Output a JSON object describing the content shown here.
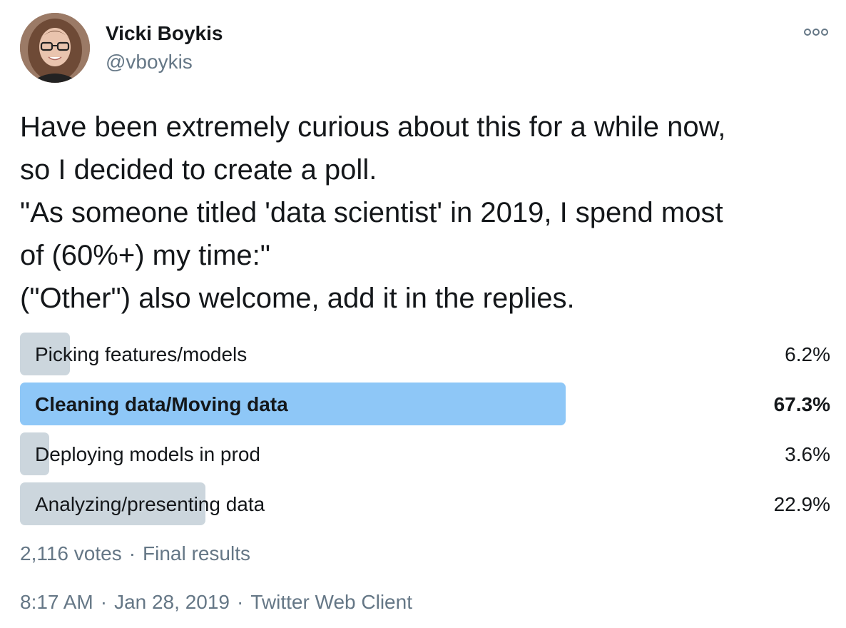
{
  "author": {
    "display_name": "Vicki Boykis",
    "handle": "@vboykis"
  },
  "menu": {
    "icon": "more-horizontal-icon"
  },
  "tweet": {
    "lines": [
      "Have been extremely curious about this for a while now,",
      "so I decided to create a poll.",
      "\"As someone titled 'data scientist' in 2019, I spend most",
      "of (60%+)  my time:\"",
      "(\"Other\") also welcome, add it in the replies."
    ]
  },
  "poll": {
    "options": [
      {
        "label": "Picking features/models",
        "percent_text": "6.2%",
        "percent": 6.2,
        "winner": false
      },
      {
        "label": "Cleaning data/Moving data",
        "percent_text": "67.3%",
        "percent": 67.3,
        "winner": true
      },
      {
        "label": "Deploying models in prod",
        "percent_text": "3.6%",
        "percent": 3.6,
        "winner": false
      },
      {
        "label": "Analyzing/presenting data",
        "percent_text": "22.9%",
        "percent": 22.9,
        "winner": false
      }
    ],
    "votes": "2,116 votes",
    "status": "Final results",
    "bar_color": "#ccd6dd",
    "winner_bar_color": "#8ec7f7"
  },
  "meta": {
    "time": "8:17 AM",
    "date": "Jan 28, 2019",
    "client": "Twitter Web Client"
  },
  "colors": {
    "text": "#14171a",
    "secondary_text": "#657786"
  }
}
